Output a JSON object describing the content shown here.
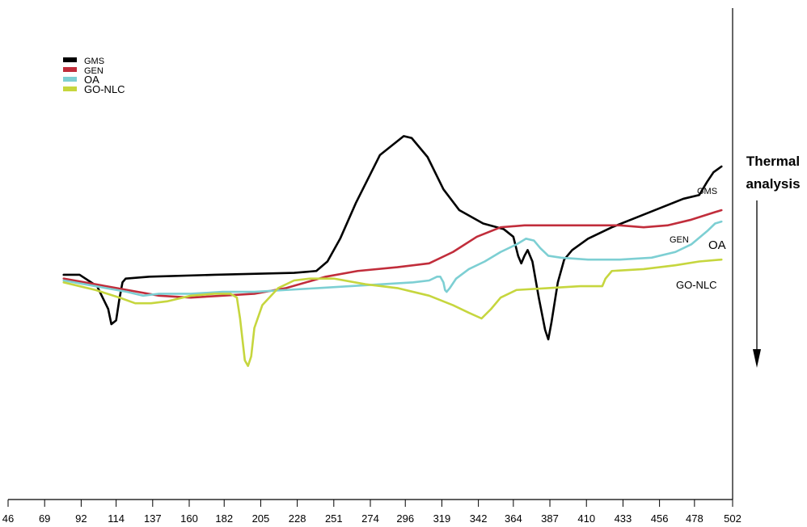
{
  "chart_data": {
    "type": "line",
    "title": "",
    "xlabel": "",
    "ylabel": "",
    "xlim": [
      46,
      502
    ],
    "ylim": [
      -100,
      100
    ],
    "x_ticks": [
      46,
      69,
      92,
      114,
      137,
      160,
      182,
      205,
      228,
      251,
      274,
      296,
      319,
      342,
      364,
      387,
      410,
      433,
      456,
      478,
      502
    ],
    "y_ticks_shown": false,
    "grid": false,
    "legend_position": "top-left",
    "side_annotation": "Thermal analysis",
    "series": [
      {
        "name": "GMS",
        "color": "#000000",
        "points": [
          [
            81,
            3
          ],
          [
            91,
            3
          ],
          [
            102,
            -3
          ],
          [
            109,
            -15
          ],
          [
            111,
            -23
          ],
          [
            114,
            -21
          ],
          [
            116,
            -10
          ],
          [
            118,
            -1
          ],
          [
            120,
            1
          ],
          [
            135,
            2
          ],
          [
            176,
            3
          ],
          [
            226,
            4
          ],
          [
            240,
            5
          ],
          [
            247,
            10
          ],
          [
            255,
            22
          ],
          [
            265,
            41
          ],
          [
            280,
            66
          ],
          [
            295,
            76
          ],
          [
            300,
            75
          ],
          [
            310,
            65
          ],
          [
            320,
            48
          ],
          [
            330,
            37
          ],
          [
            345,
            30
          ],
          [
            358,
            27
          ],
          [
            364,
            23
          ],
          [
            367,
            13
          ],
          [
            369,
            9
          ],
          [
            371,
            13
          ],
          [
            373,
            16
          ],
          [
            376,
            10
          ],
          [
            380,
            -9
          ],
          [
            384,
            -26
          ],
          [
            386,
            -31
          ],
          [
            388,
            -22
          ],
          [
            392,
            -1
          ],
          [
            396,
            11
          ],
          [
            401,
            16
          ],
          [
            411,
            22
          ],
          [
            426,
            28
          ],
          [
            441,
            33
          ],
          [
            456,
            38
          ],
          [
            471,
            43
          ],
          [
            481,
            45
          ],
          [
            486,
            52
          ],
          [
            490,
            57
          ],
          [
            495,
            60
          ]
        ]
      },
      {
        "name": "GEN",
        "color": "#c12d3b",
        "points": [
          [
            81,
            1
          ],
          [
            101,
            -2
          ],
          [
            121,
            -5
          ],
          [
            141,
            -8
          ],
          [
            161,
            -9
          ],
          [
            181,
            -8
          ],
          [
            201,
            -7
          ],
          [
            221,
            -4
          ],
          [
            246,
            2
          ],
          [
            266,
            5
          ],
          [
            291,
            7
          ],
          [
            311,
            9
          ],
          [
            326,
            15
          ],
          [
            341,
            23
          ],
          [
            356,
            28
          ],
          [
            371,
            29
          ],
          [
            391,
            29
          ],
          [
            416,
            29
          ],
          [
            431,
            29
          ],
          [
            446,
            28
          ],
          [
            461,
            29
          ],
          [
            476,
            32
          ],
          [
            491,
            36
          ],
          [
            495,
            37
          ]
        ]
      },
      {
        "name": "OA",
        "color": "#7dcfd3",
        "points": [
          [
            81,
            0
          ],
          [
            101,
            -3
          ],
          [
            121,
            -6
          ],
          [
            131,
            -8
          ],
          [
            141,
            -7
          ],
          [
            161,
            -7
          ],
          [
            181,
            -6
          ],
          [
            201,
            -6
          ],
          [
            221,
            -5
          ],
          [
            241,
            -4
          ],
          [
            261,
            -3
          ],
          [
            281,
            -2
          ],
          [
            301,
            -1
          ],
          [
            311,
            0
          ],
          [
            316,
            2
          ],
          [
            318,
            2
          ],
          [
            320,
            -1
          ],
          [
            321,
            -5
          ],
          [
            322,
            -6
          ],
          [
            324,
            -4
          ],
          [
            328,
            1
          ],
          [
            336,
            6
          ],
          [
            346,
            10
          ],
          [
            356,
            15
          ],
          [
            366,
            19
          ],
          [
            372,
            22
          ],
          [
            377,
            21
          ],
          [
            381,
            17
          ],
          [
            386,
            13
          ],
          [
            394,
            12
          ],
          [
            411,
            11
          ],
          [
            431,
            11
          ],
          [
            451,
            12
          ],
          [
            466,
            15
          ],
          [
            476,
            19
          ],
          [
            486,
            26
          ],
          [
            491,
            30
          ],
          [
            495,
            31
          ]
        ]
      },
      {
        "name": "GO-NLC",
        "color": "#c6d63e",
        "points": [
          [
            81,
            -1
          ],
          [
            91,
            -3
          ],
          [
            101,
            -5
          ],
          [
            116,
            -9
          ],
          [
            126,
            -12
          ],
          [
            136,
            -12
          ],
          [
            146,
            -11
          ],
          [
            161,
            -8
          ],
          [
            176,
            -7
          ],
          [
            186,
            -7
          ],
          [
            190,
            -9
          ],
          [
            192,
            -20
          ],
          [
            195,
            -42
          ],
          [
            197,
            -45
          ],
          [
            199,
            -40
          ],
          [
            201,
            -25
          ],
          [
            206,
            -13
          ],
          [
            216,
            -4
          ],
          [
            226,
            0
          ],
          [
            236,
            1
          ],
          [
            251,
            1
          ],
          [
            271,
            -2
          ],
          [
            291,
            -4
          ],
          [
            311,
            -8
          ],
          [
            326,
            -13
          ],
          [
            336,
            -17
          ],
          [
            344,
            -20
          ],
          [
            350,
            -15
          ],
          [
            356,
            -9
          ],
          [
            366,
            -5
          ],
          [
            386,
            -4
          ],
          [
            406,
            -3
          ],
          [
            420,
            -3
          ],
          [
            422,
            1
          ],
          [
            426,
            5
          ],
          [
            446,
            6
          ],
          [
            466,
            8
          ],
          [
            481,
            10
          ],
          [
            495,
            11
          ]
        ]
      }
    ],
    "series_labels": [
      "GMS",
      "GEN",
      "OA",
      "GO-NLC"
    ]
  }
}
